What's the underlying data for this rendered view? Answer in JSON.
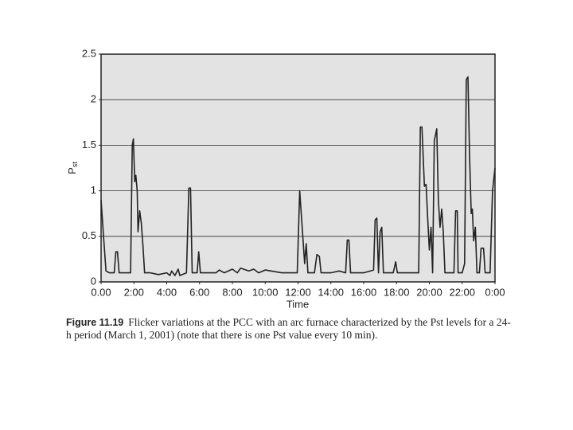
{
  "chart_data": {
    "type": "line",
    "y_label_main": "P",
    "y_label_sub": "st",
    "x_label": "Time",
    "caption_label": "Figure 11.19",
    "caption_text": "Flicker variations at the PCC with an arc furnace characterized by the Pst levels for a 24-h period (March 1, 2001) (note that there is one Pst value every 10 min).",
    "color": "#222222",
    "background": "#e3e3e3",
    "grid": true,
    "xlim": [
      0,
      24
    ],
    "ylim": [
      0,
      2.5
    ],
    "yticks": [
      0,
      0.5,
      1,
      1.5,
      2,
      2.5
    ],
    "xticks": [
      {
        "value": 0,
        "label": "0.00"
      },
      {
        "value": 2,
        "label": "2:00"
      },
      {
        "value": 4,
        "label": "4:00"
      },
      {
        "value": 6,
        "label": "6:00"
      },
      {
        "value": 8,
        "label": "8:00"
      },
      {
        "value": 10,
        "label": "10:00"
      },
      {
        "value": 12,
        "label": "12:00"
      },
      {
        "value": 14,
        "label": "14:00"
      },
      {
        "value": 16,
        "label": "16:00"
      },
      {
        "value": 18,
        "label": "18:00"
      },
      {
        "value": 20,
        "label": "20:00"
      },
      {
        "value": 22,
        "label": "22:00"
      },
      {
        "value": 24,
        "label": "0:00"
      }
    ],
    "x": [
      0,
      0.15,
      0.3,
      0.5,
      0.8,
      0.9,
      1.0,
      1.1,
      1.8,
      1.9,
      1.97,
      2.05,
      2.12,
      2.2,
      2.25,
      2.35,
      2.45,
      2.55,
      2.65,
      3.0,
      3.5,
      4.0,
      4.2,
      4.3,
      4.5,
      4.7,
      4.8,
      5.2,
      5.35,
      5.45,
      5.55,
      5.85,
      5.95,
      6.05,
      7.0,
      7.2,
      7.5,
      8.0,
      8.3,
      8.5,
      9.0,
      9.3,
      9.6,
      10.0,
      11.0,
      11.95,
      12.1,
      12.25,
      12.4,
      12.5,
      12.6,
      13.0,
      13.15,
      13.3,
      13.4,
      14.0,
      14.5,
      14.9,
      15.0,
      15.1,
      15.2,
      16.0,
      16.6,
      16.7,
      16.8,
      16.9,
      17.0,
      17.1,
      17.2,
      17.8,
      17.95,
      18.05,
      19.0,
      19.35,
      19.45,
      19.55,
      19.7,
      19.8,
      19.9,
      20.0,
      20.1,
      20.2,
      20.3,
      20.45,
      20.55,
      20.65,
      20.75,
      20.85,
      20.95,
      21.2,
      21.5,
      21.6,
      21.7,
      21.75,
      22.0,
      22.15,
      22.25,
      22.35,
      22.45,
      22.55,
      22.62,
      22.7,
      22.8,
      22.9,
      23.05,
      23.15,
      23.3,
      23.4,
      23.7,
      23.85,
      24.0
    ],
    "values": [
      0.9,
      0.5,
      0.12,
      0.1,
      0.1,
      0.33,
      0.33,
      0.1,
      0.1,
      1.5,
      1.57,
      1.1,
      1.17,
      1.0,
      0.55,
      0.78,
      0.65,
      0.4,
      0.1,
      0.1,
      0.08,
      0.1,
      0.07,
      0.12,
      0.07,
      0.14,
      0.07,
      0.1,
      1.03,
      1.03,
      0.1,
      0.1,
      0.33,
      0.1,
      0.1,
      0.13,
      0.1,
      0.14,
      0.1,
      0.15,
      0.12,
      0.14,
      0.1,
      0.13,
      0.1,
      0.1,
      1.0,
      0.6,
      0.2,
      0.42,
      0.1,
      0.1,
      0.3,
      0.28,
      0.1,
      0.1,
      0.12,
      0.1,
      0.46,
      0.46,
      0.1,
      0.1,
      0.13,
      0.68,
      0.7,
      0.1,
      0.55,
      0.6,
      0.1,
      0.1,
      0.22,
      0.1,
      0.1,
      0.1,
      1.7,
      1.7,
      1.05,
      1.07,
      0.7,
      0.35,
      0.6,
      0.1,
      1.55,
      1.68,
      0.9,
      0.6,
      0.8,
      0.55,
      0.1,
      0.1,
      0.1,
      0.78,
      0.78,
      0.1,
      0.1,
      0.2,
      2.22,
      2.25,
      1.4,
      0.75,
      0.8,
      0.45,
      0.6,
      0.1,
      0.1,
      0.37,
      0.37,
      0.1,
      0.1,
      1.0,
      1.25
    ]
  }
}
